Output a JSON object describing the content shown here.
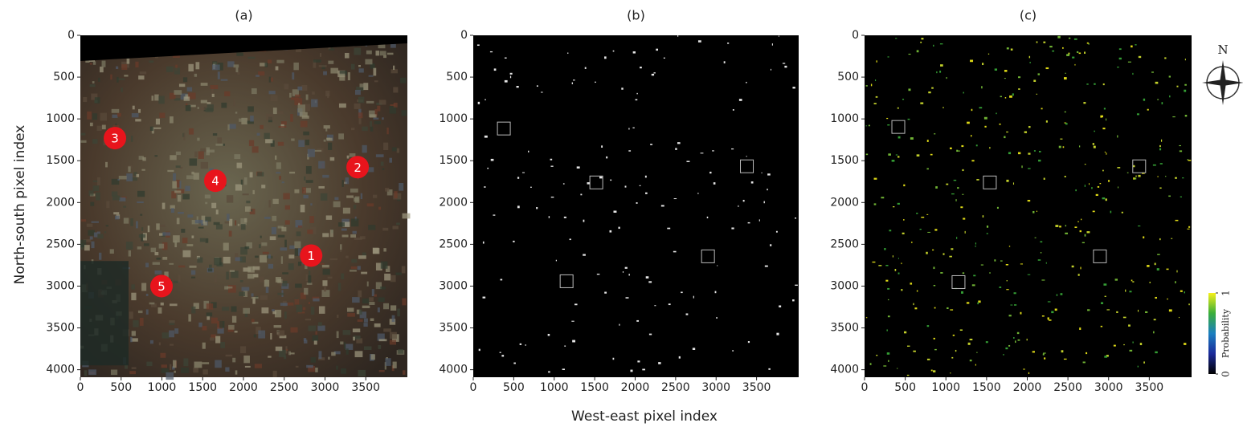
{
  "figure": {
    "xlabel": "West-east pixel index",
    "ylabel": "North-south pixel index",
    "compass": "N"
  },
  "chart_data": [
    {
      "type": "image",
      "title": "(a)",
      "xlim": [
        0,
        4010
      ],
      "ylim": [
        0,
        4090
      ],
      "xticks": [
        0,
        500,
        1000,
        1500,
        2000,
        2500,
        3000,
        3500
      ],
      "yticks": [
        0,
        500,
        1000,
        1500,
        2000,
        2500,
        3000,
        3500,
        4000
      ],
      "markers": [
        {
          "label": "1",
          "x": 2830,
          "y": 2635
        },
        {
          "label": "2",
          "x": 3400,
          "y": 1577
        },
        {
          "label": "3",
          "x": 424,
          "y": 1230
        },
        {
          "label": "4",
          "x": 1655,
          "y": 1740
        },
        {
          "label": "5",
          "x": 995,
          "y": 3000
        }
      ]
    },
    {
      "type": "image",
      "title": "(b)",
      "xlim": [
        0,
        4020
      ],
      "ylim": [
        0,
        4090
      ],
      "xticks": [
        0,
        500,
        1000,
        1500,
        2000,
        2500,
        3000,
        3500
      ],
      "yticks": [
        0,
        500,
        1000,
        1500,
        2000,
        2500,
        3000,
        3500,
        4000
      ],
      "boxes": [
        {
          "x": 378,
          "y": 1115
        },
        {
          "x": 1520,
          "y": 1760
        },
        {
          "x": 3380,
          "y": 1567
        },
        {
          "x": 2900,
          "y": 2644
        },
        {
          "x": 1153,
          "y": 2942
        }
      ]
    },
    {
      "type": "image",
      "title": "(c)",
      "xlim": [
        0,
        4020
      ],
      "ylim": [
        0,
        4090
      ],
      "xticks": [
        0,
        500,
        1000,
        1500,
        2000,
        2500,
        3000,
        3500
      ],
      "yticks": [
        0,
        500,
        1000,
        1500,
        2000,
        2500,
        3000,
        3500,
        4000
      ],
      "boxes": [
        {
          "x": 415,
          "y": 1096
        },
        {
          "x": 1540,
          "y": 1760
        },
        {
          "x": 3376,
          "y": 1567
        },
        {
          "x": 2893,
          "y": 2644
        },
        {
          "x": 1155,
          "y": 2952
        }
      ],
      "colorbar": {
        "label": "Probability",
        "lim": [
          0,
          1
        ],
        "ticks": [
          0,
          1
        ]
      }
    }
  ]
}
